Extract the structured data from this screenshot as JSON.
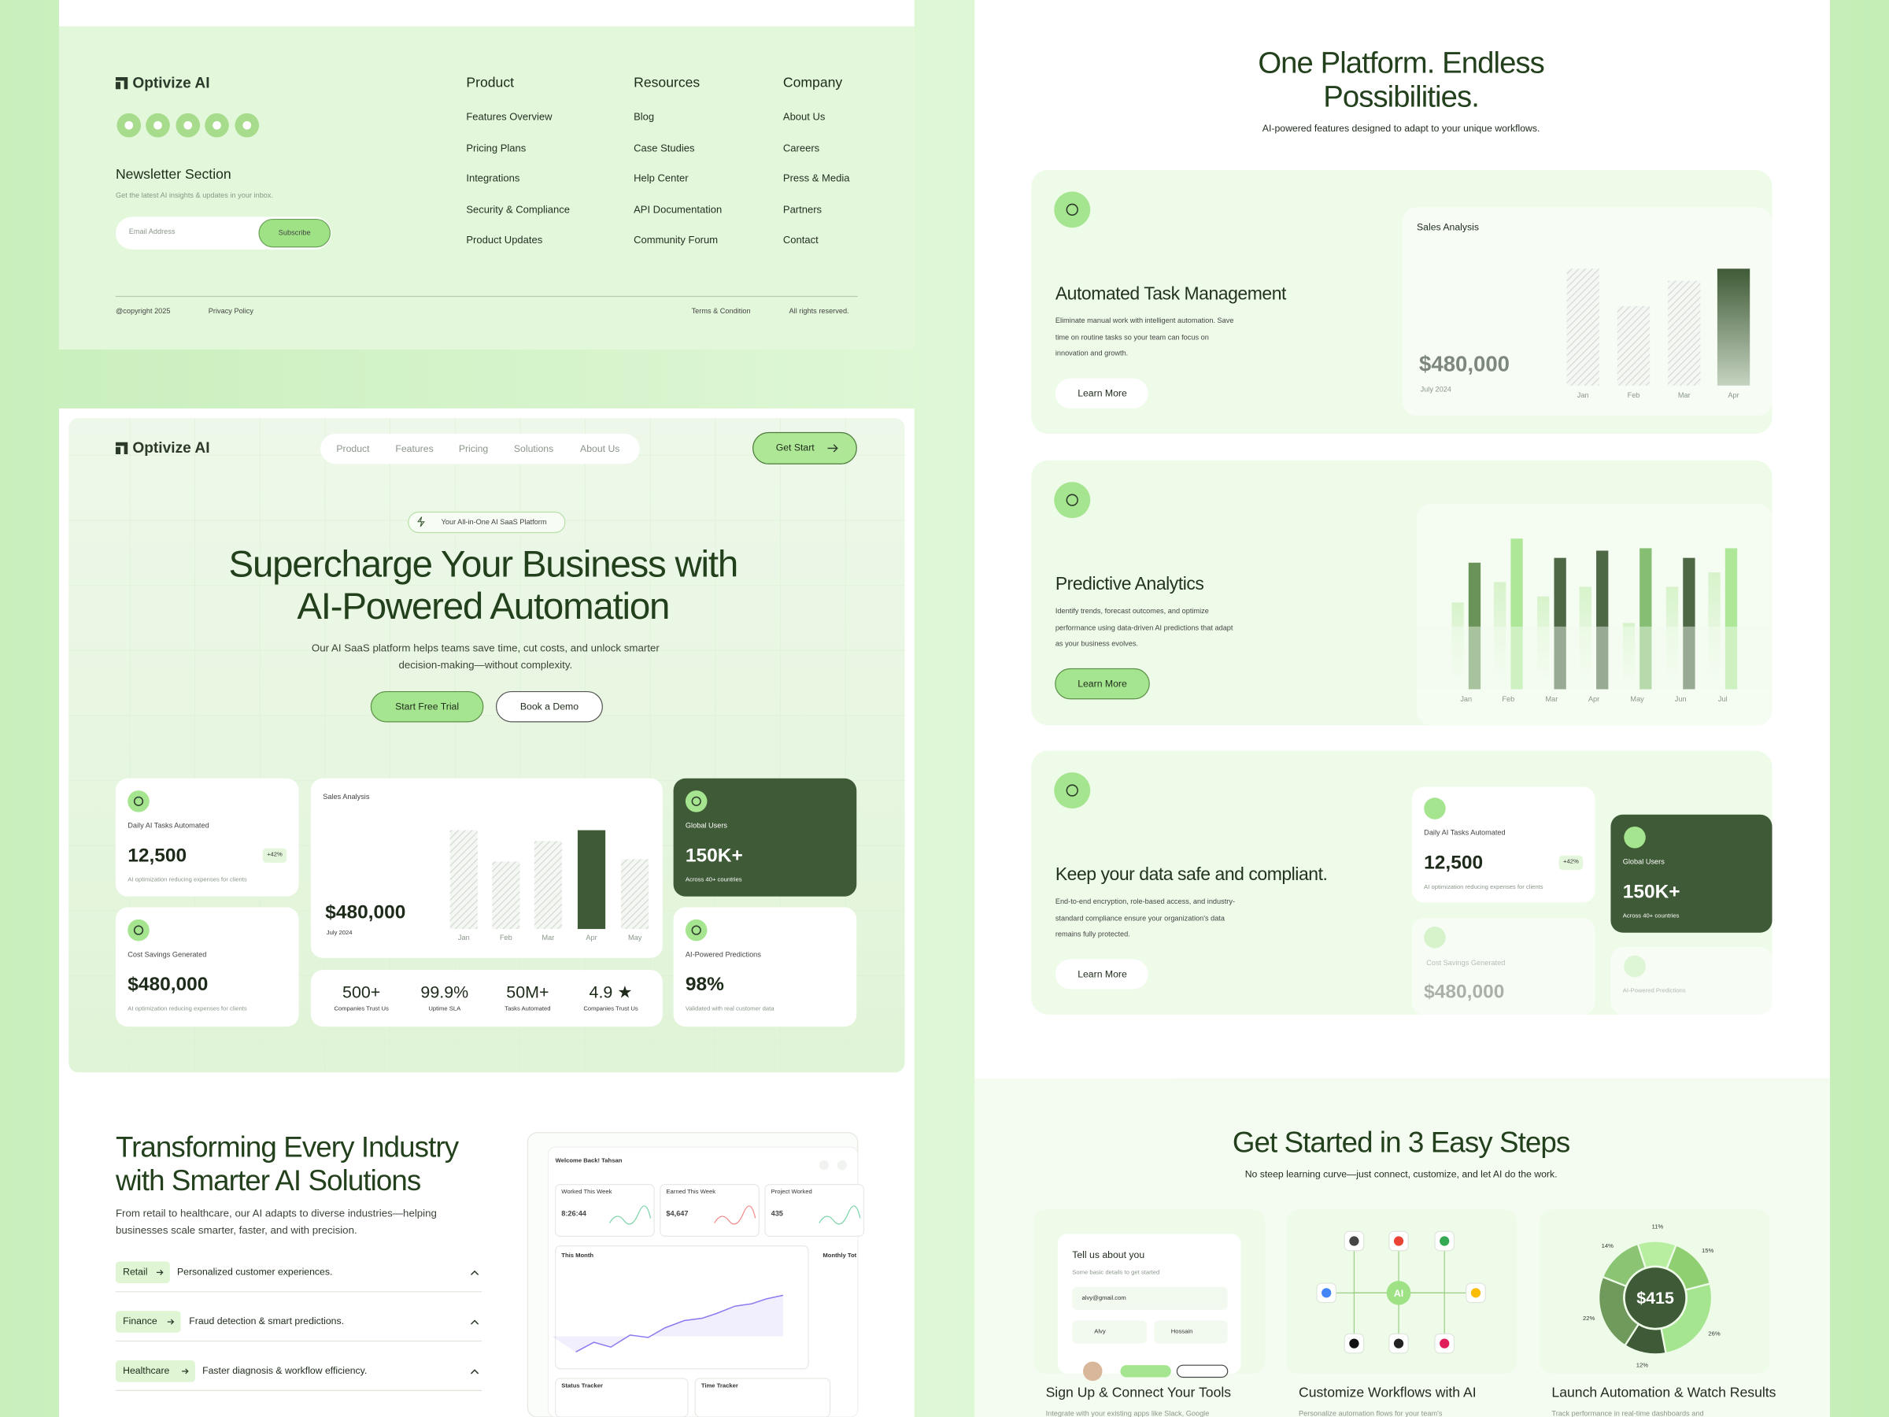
{
  "footer": {
    "brand": "Optivize AI",
    "newsletter_title": "Newsletter Section",
    "newsletter_text": "Get the latest AI insights & updates in your inbox.",
    "email_placeholder": "Email Address",
    "subscribe": "Subscribe",
    "columns": [
      {
        "title": "Product",
        "links": [
          "Features Overview",
          "Pricing Plans",
          "Integrations",
          "Security & Compliance",
          "Product Updates"
        ]
      },
      {
        "title": "Resources",
        "links": [
          "Blog",
          "Case Studies",
          "Help Center",
          "API Documentation",
          "Community Forum"
        ]
      },
      {
        "title": "Company",
        "links": [
          "About Us",
          "Careers",
          "Press & Media",
          "Partners",
          "Contact"
        ]
      }
    ],
    "copyright": "@copyright 2025",
    "privacy": "Privacy Policy",
    "terms": "Terms & Condition",
    "rights": "All rights reserved."
  },
  "hero": {
    "brand": "Optivize AI",
    "nav": [
      "Product",
      "Features",
      "Pricing",
      "Solutions",
      "About Us"
    ],
    "cta": "Get Start",
    "badge": "Your All-in-One AI SaaS Platform",
    "title_lines": [
      "Supercharge Your Business with",
      "AI-Powered Automation"
    ],
    "subtitle_lines": [
      "Our AI SaaS platform helps teams save time, cut costs, and unlock smarter",
      "decision-making—without complexity."
    ],
    "primary_button": "Start Free Trial",
    "secondary_button": "Book a Demo",
    "tasks_card": {
      "label": "Daily AI Tasks Automated",
      "value": "12,500",
      "change": "+42%",
      "note": "AI optimization reducing expenses for clients"
    },
    "savings_card": {
      "label": "Cost Savings Generated",
      "value": "$480,000",
      "note": "AI optimization reducing expenses for clients"
    },
    "sales_card": {
      "type": "bar",
      "title": "Sales Analysis",
      "value": "$480,000",
      "period": "July 2024",
      "categories": [
        "Jan",
        "Feb",
        "Mar",
        "Apr",
        "May"
      ],
      "values": [
        82,
        56,
        73,
        82,
        58
      ],
      "ylim": [
        0,
        100
      ],
      "highlight": 3,
      "color": "#3f5a36"
    },
    "stats": [
      {
        "value": "500+",
        "label": "Companies Trust Us"
      },
      {
        "value": "99.9%",
        "label": "Uptime SLA"
      },
      {
        "value": "50M+",
        "label": "Tasks Automated"
      },
      {
        "value": "4.9 ★",
        "label": "Companies Trust Us"
      }
    ],
    "users_card": {
      "label": "Global Users",
      "value": "150K+",
      "note": "Across 40+ countries"
    },
    "predictions_card": {
      "label": "AI-Powered Predictions",
      "value": "98%",
      "note": "Validated with real customer data"
    }
  },
  "industries": {
    "title_lines": [
      "Transforming Every Industry",
      "with Smarter AI Solutions"
    ],
    "paragraph_lines": [
      "From retail to healthcare, our AI adapts to diverse industries—helping",
      "businesses scale smarter, faster, and with precision."
    ],
    "items": [
      {
        "tag": "Retail",
        "text": "Personalized customer experiences."
      },
      {
        "tag": "Finance",
        "text": "Fraud detection & smart predictions."
      },
      {
        "tag": "Healthcare",
        "text": "Faster diagnosis & workflow efficiency."
      }
    ],
    "dashboard": {
      "greeting": "Welcome Back! Tahsan",
      "tiles": [
        {
          "label": "Worked This Week",
          "value": "8:26:44"
        },
        {
          "label": "Earned This Week",
          "value": "$4,647"
        },
        {
          "label": "Project Worked",
          "value": "435"
        }
      ],
      "month": "This Month",
      "monthly": "Monthly Tot",
      "status": "Status Tracker",
      "time": "Time Tracker"
    }
  },
  "features": {
    "title_lines": [
      "One Platform. Endless",
      "Possibilities."
    ],
    "subtitle": "AI-powered features designed to adapt to your unique workflows.",
    "cards": [
      {
        "title": "Automated Task Management",
        "description_lines": [
          "Eliminate manual work with intelligent automation. Save",
          "time on routine tasks so your team can focus on",
          "innovation and growth."
        ],
        "button": "Learn More"
      },
      {
        "title": "Predictive Analytics",
        "description_lines": [
          "Identify trends, forecast outcomes, and optimize",
          "performance using data-driven AI predictions that adapt",
          "as your business evolves."
        ],
        "button": "Learn More"
      },
      {
        "title": "Keep your data safe and compliant.",
        "description_lines": [
          "End-to-end encryption, role-based access, and industry-",
          "standard compliance ensure your organization's data",
          "remains fully protected."
        ],
        "button": "Learn More"
      }
    ],
    "sales_chart": {
      "type": "bar",
      "title": "Sales Analysis",
      "value": "$480,000",
      "period": "July 2024",
      "categories": [
        "Jan",
        "Feb",
        "Mar",
        "Apr"
      ],
      "values": [
        97,
        66,
        87,
        97
      ],
      "ylim": [
        0,
        100
      ],
      "highlight": 3,
      "color": "#3f5a36"
    },
    "analytics_chart": {
      "type": "bar",
      "categories": [
        "Jan",
        "Feb",
        "Mar",
        "Apr",
        "May",
        "Jun",
        "Jul"
      ],
      "background_values": [
        72,
        89,
        77,
        85,
        55,
        85,
        97
      ],
      "values": [
        105,
        125,
        109,
        115,
        117,
        109,
        117
      ],
      "colors": [
        "#5d8a4c",
        "#a6e58f",
        "#3f5a36",
        "#3f5a36",
        "#7cb868",
        "#3f5a36",
        "#a6e58f"
      ],
      "ylim": [
        0,
        130
      ]
    }
  },
  "steps": {
    "title": "Get Started in 3 Easy Steps",
    "subtitle": "No steep learning curve—just connect, customize, and let AI do the work.",
    "items": [
      {
        "title": "Sign Up & Connect Your Tools",
        "text": "Integrate with your existing apps like Slack, Google"
      },
      {
        "title": "Customize Workflows with AI",
        "text": "Personalize automation flows for your team's"
      },
      {
        "title": "Launch Automation & Watch Results",
        "text": "Track performance in real-time dashboards and"
      }
    ],
    "form": {
      "title": "Tell us about you",
      "subtitle": "Some basic details to get started",
      "email": "alvy@gmail.com",
      "first_name": "Alvy",
      "last_name": "Hossain"
    },
    "hub_label": "AI",
    "donut": {
      "type": "pie",
      "center": "$415",
      "values": [
        11,
        15,
        26,
        12,
        22,
        14
      ],
      "value_labels": [
        "11%",
        "15%",
        "26%",
        "12%",
        "22%",
        "14%"
      ],
      "colors": [
        "#b7ee9f",
        "#8fcf72",
        "#a6e58f",
        "#3f5a36",
        "#6f9a5c",
        "#8bc473"
      ]
    }
  }
}
